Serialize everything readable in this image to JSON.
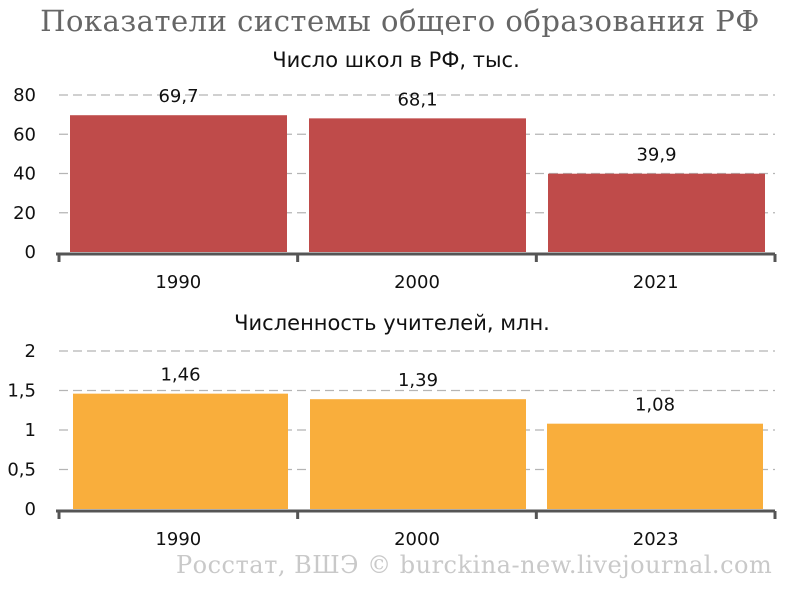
{
  "header": {
    "title": "Показатели системы общего образования РФ"
  },
  "footer": {
    "credit": "Росстат, ВШЭ © burckina-new.livejournal.com"
  },
  "chart_data": [
    {
      "type": "bar",
      "title": "Число школ в РФ, тыс.",
      "categories": [
        "1990",
        "2000",
        "2021"
      ],
      "values": [
        69.7,
        68.1,
        39.9
      ],
      "value_labels": [
        "69,7",
        "68,1",
        "39,9"
      ],
      "ylim": [
        0,
        80
      ],
      "yticks": [
        0,
        20,
        40,
        60,
        80
      ],
      "ytick_labels": [
        "0",
        "20",
        "40",
        "60",
        "80"
      ],
      "color": "#bf4b4a",
      "grid": true
    },
    {
      "type": "bar",
      "title": "Численность учителей, млн.",
      "categories": [
        "1990",
        "2000",
        "2023"
      ],
      "values": [
        1.46,
        1.39,
        1.08
      ],
      "value_labels": [
        "1,46",
        "1,39",
        "1,08"
      ],
      "ylim": [
        0,
        2
      ],
      "yticks": [
        0,
        0.5,
        1,
        1.5,
        2
      ],
      "ytick_labels": [
        "0",
        "0,5",
        "1",
        "1,5",
        "2"
      ],
      "color": "#f9ae3c",
      "grid": true
    }
  ]
}
